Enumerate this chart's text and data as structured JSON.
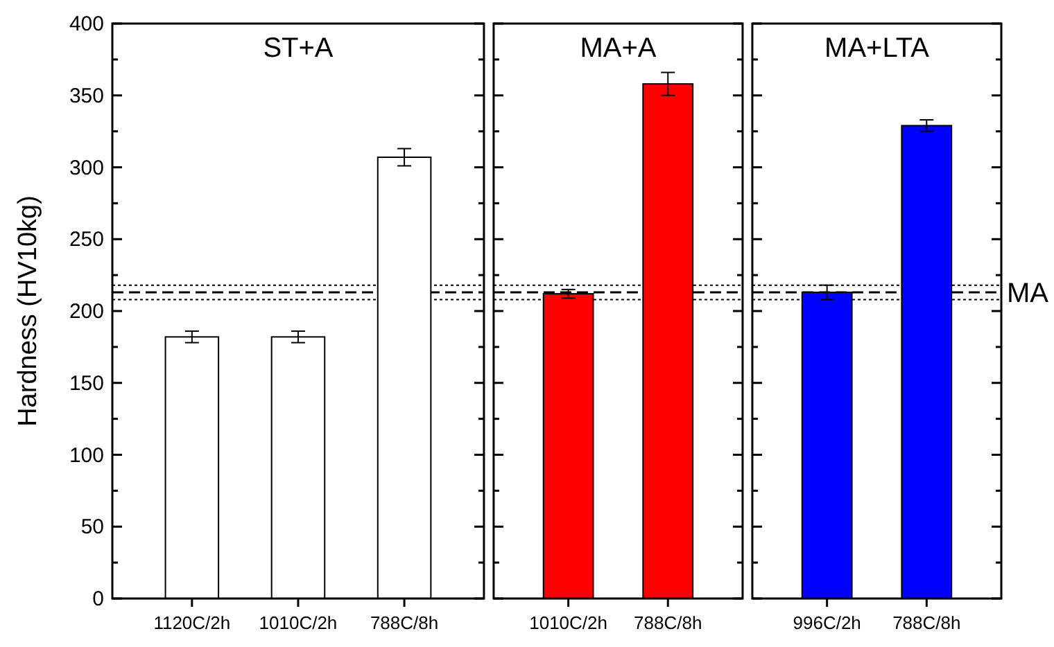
{
  "chart_data": [
    {
      "type": "bar",
      "title": "ST+A",
      "ylabel": "Hardness (HV10kg)",
      "categories": [
        "1120C/2h",
        "1010C/2h",
        "788C/8h"
      ],
      "values": [
        182,
        182,
        307
      ],
      "errors": [
        4,
        4,
        6
      ],
      "colors": [
        "#ffffff",
        "#ffffff",
        "#ffffff"
      ],
      "ylim": [
        0,
        400
      ],
      "yticks": [
        0,
        {
          "value": 25,
          "label": null
        },
        50,
        {
          "value": 75,
          "label": null
        },
        100,
        {
          "value": 125,
          "label": null
        },
        150,
        {
          "value": 175,
          "label": null
        },
        200,
        {
          "value": 225,
          "label": null
        },
        250,
        {
          "value": 275,
          "label": null
        },
        300,
        {
          "value": 325,
          "label": null
        },
        350,
        {
          "value": 375,
          "label": null
        },
        400
      ],
      "grid": false,
      "ref_lines": [
        {
          "axis": "y",
          "value": 213,
          "line_style": "dashed"
        },
        {
          "axis": "y",
          "value": 218,
          "line_style": "dotted"
        },
        {
          "axis": "y",
          "value": 208,
          "line_style": "dotted"
        }
      ]
    },
    {
      "type": "bar",
      "title": "MA+A",
      "categories": [
        "1010C/2h",
        "788C/8h"
      ],
      "values": [
        212,
        358
      ],
      "errors": [
        3,
        8
      ],
      "colors": [
        "#ff0000",
        "#ff0000"
      ],
      "ylim": [
        0,
        400
      ],
      "yticks": [
        0,
        {
          "value": 25,
          "label": null
        },
        50,
        {
          "value": 75,
          "label": null
        },
        100,
        {
          "value": 125,
          "label": null
        },
        150,
        {
          "value": 175,
          "label": null
        },
        200,
        {
          "value": 225,
          "label": null
        },
        250,
        {
          "value": 275,
          "label": null
        },
        300,
        {
          "value": 325,
          "label": null
        },
        350,
        {
          "value": 375,
          "label": null
        },
        400
      ],
      "tick_labels": "x",
      "grid": false,
      "ref_lines": [
        {
          "axis": "y",
          "value": 213,
          "line_style": "dashed"
        },
        {
          "axis": "y",
          "value": 218,
          "line_style": "dotted"
        },
        {
          "axis": "y",
          "value": 208,
          "line_style": "dotted"
        }
      ]
    },
    {
      "type": "bar",
      "title": "MA+LTA",
      "categories": [
        "996C/2h",
        "788C/8h"
      ],
      "values": [
        213,
        329
      ],
      "errors": [
        5,
        4
      ],
      "colors": [
        "#0000ff",
        "#0000ff"
      ],
      "ylim": [
        0,
        400
      ],
      "yticks": [
        0,
        {
          "value": 25,
          "label": null
        },
        50,
        {
          "value": 75,
          "label": null
        },
        100,
        {
          "value": 125,
          "label": null
        },
        150,
        {
          "value": 175,
          "label": null
        },
        200,
        {
          "value": 225,
          "label": null
        },
        250,
        {
          "value": 275,
          "label": null
        },
        300,
        {
          "value": 325,
          "label": null
        },
        350,
        {
          "value": 375,
          "label": null
        },
        400
      ],
      "tick_labels": "x",
      "grid": false,
      "ref_lines": [
        {
          "axis": "y",
          "value": 213,
          "label": "MA",
          "line_style": "dashed"
        },
        {
          "axis": "y",
          "value": 218,
          "line_style": "dotted"
        },
        {
          "axis": "y",
          "value": 208,
          "line_style": "dotted"
        }
      ]
    }
  ]
}
